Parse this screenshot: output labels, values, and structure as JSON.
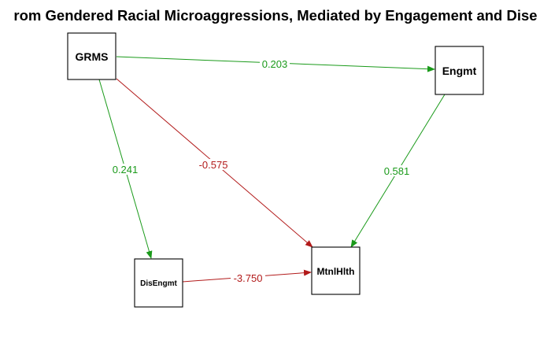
{
  "title": "rom Gendered Racial Microaggressions, Mediated by Engagement and Dise",
  "colors": {
    "positive": "#1a9a1a",
    "negative": "#b21a1a",
    "box_stroke": "#000000"
  },
  "nodes": {
    "grms": "GRMS",
    "engmt": "Engmt",
    "disengmt": "DisEngmt",
    "mtnlhlth": "MtnlHlth"
  },
  "edges": {
    "grms_engmt": {
      "from": "GRMS",
      "to": "Engmt",
      "label": "0.203",
      "sign": "positive"
    },
    "grms_disengmt": {
      "from": "GRMS",
      "to": "DisEngmt",
      "label": "0.241",
      "sign": "positive"
    },
    "grms_mtnlhlth": {
      "from": "GRMS",
      "to": "MtnlHlth",
      "label": "-0.575",
      "sign": "negative"
    },
    "engmt_mtnlhlth": {
      "from": "Engmt",
      "to": "MtnlHlth",
      "label": "0.581",
      "sign": "positive"
    },
    "disengmt_mtnlhlth": {
      "from": "DisEngmt",
      "to": "MtnlHlth",
      "label": "-3.750",
      "sign": "negative"
    }
  }
}
